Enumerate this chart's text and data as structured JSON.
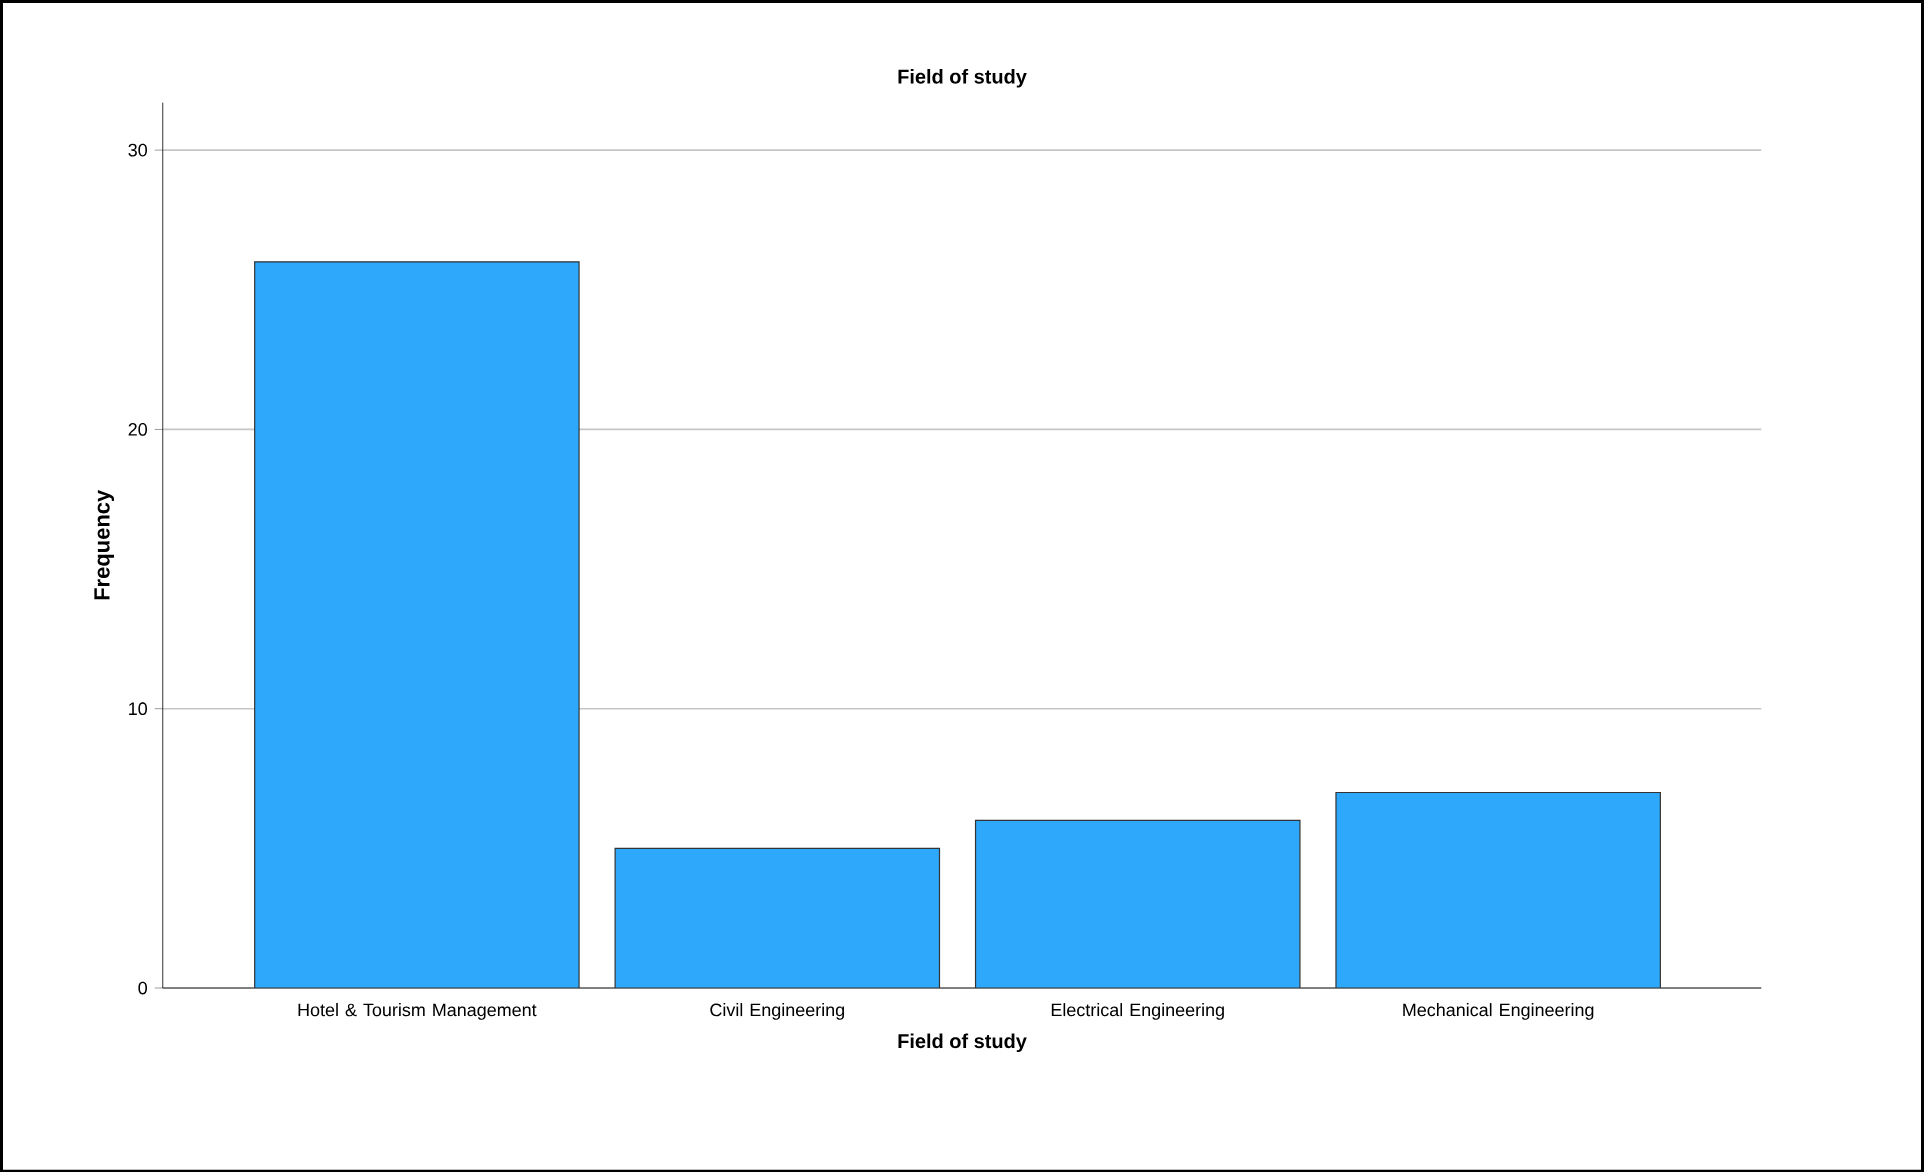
{
  "chart_data": {
    "type": "bar",
    "title": "Field of study",
    "xlabel": "Field of study",
    "ylabel": "Frequency",
    "categories": [
      "Hotel & Tourism Management",
      "Civil Engineering",
      "Electrical Engineering",
      "Mechanical Engineering"
    ],
    "values": [
      26,
      5,
      6,
      7
    ],
    "color": "#2ea8fb",
    "ylim": [
      0,
      31.7
    ],
    "yticks": [
      0,
      10,
      20,
      30
    ],
    "grid": "y"
  }
}
